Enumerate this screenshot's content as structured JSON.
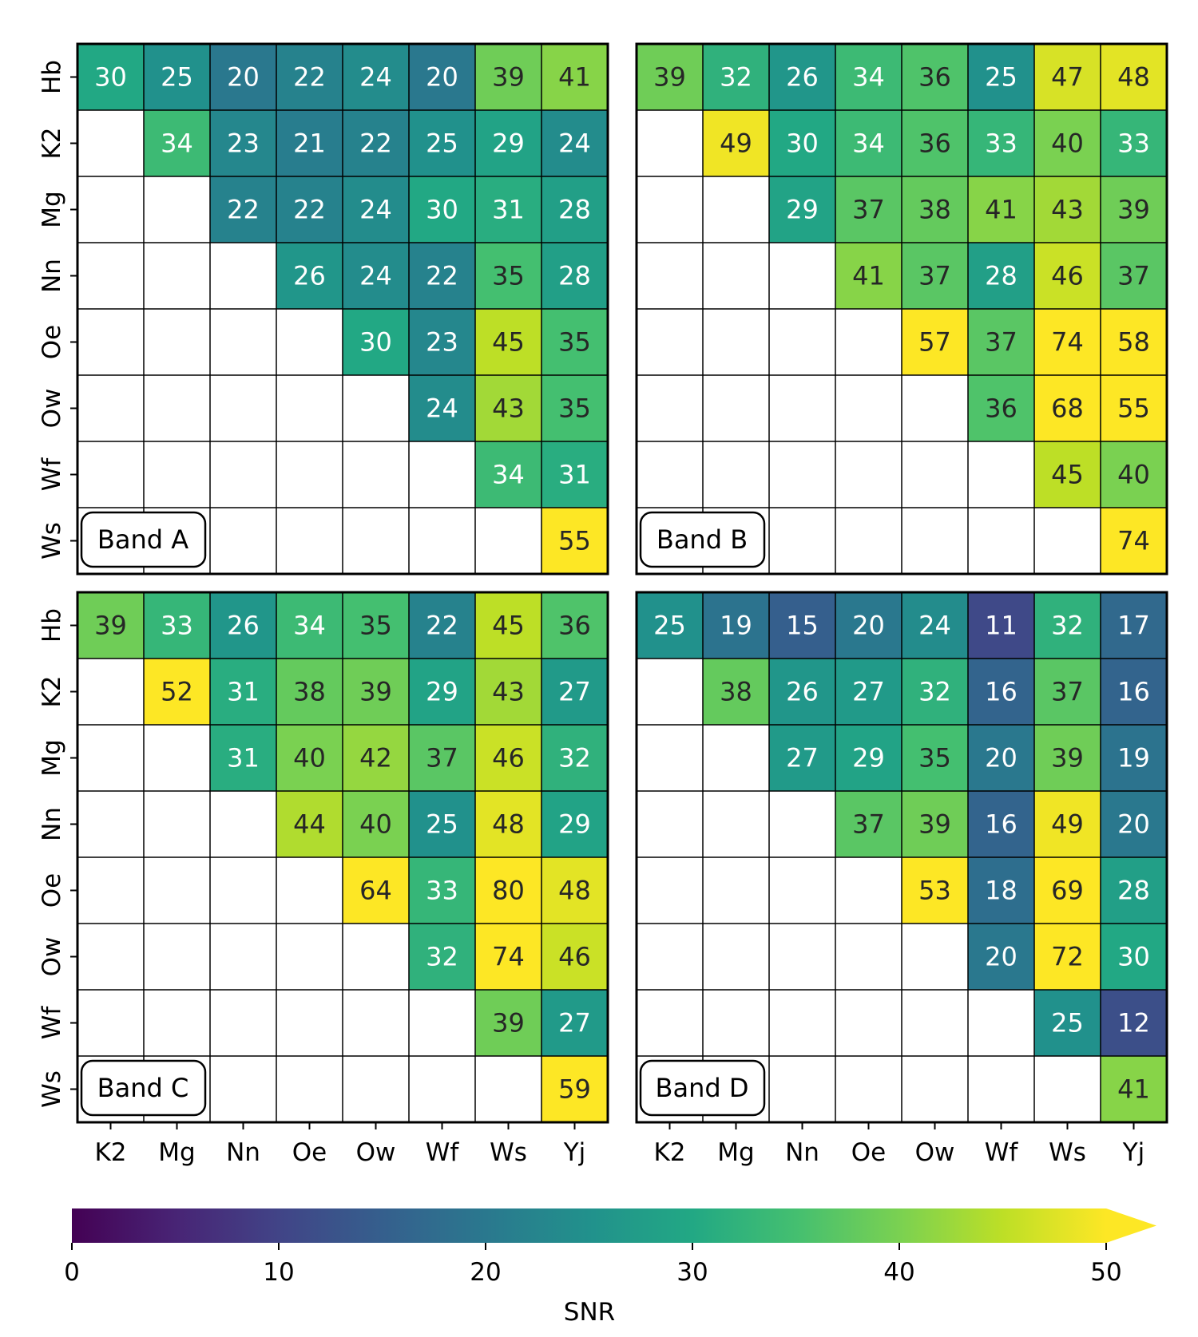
{
  "chart_data": {
    "type": "heatmap",
    "row_labels": [
      "Hb",
      "K2",
      "Mg",
      "Nn",
      "Oe",
      "Ow",
      "Wf",
      "Ws"
    ],
    "col_labels": [
      "K2",
      "Mg",
      "Nn",
      "Oe",
      "Ow",
      "Wf",
      "Ws",
      "Yj"
    ],
    "panels": [
      {
        "label": "Band A",
        "values": [
          [
            30,
            25,
            20,
            22,
            24,
            20,
            39,
            41
          ],
          [
            null,
            34,
            23,
            21,
            22,
            25,
            29,
            24
          ],
          [
            null,
            null,
            22,
            22,
            24,
            30,
            31,
            28
          ],
          [
            null,
            null,
            null,
            26,
            24,
            22,
            35,
            28
          ],
          [
            null,
            null,
            null,
            null,
            30,
            23,
            45,
            35
          ],
          [
            null,
            null,
            null,
            null,
            null,
            24,
            43,
            35
          ],
          [
            null,
            null,
            null,
            null,
            null,
            null,
            34,
            31
          ],
          [
            null,
            null,
            null,
            null,
            null,
            null,
            null,
            55
          ]
        ]
      },
      {
        "label": "Band B",
        "values": [
          [
            39,
            32,
            26,
            34,
            36,
            25,
            47,
            48
          ],
          [
            null,
            49,
            30,
            34,
            36,
            33,
            40,
            33
          ],
          [
            null,
            null,
            29,
            37,
            38,
            41,
            43,
            39
          ],
          [
            null,
            null,
            null,
            41,
            37,
            28,
            46,
            37
          ],
          [
            null,
            null,
            null,
            null,
            57,
            37,
            74,
            58
          ],
          [
            null,
            null,
            null,
            null,
            null,
            36,
            68,
            55
          ],
          [
            null,
            null,
            null,
            null,
            null,
            null,
            45,
            40
          ],
          [
            null,
            null,
            null,
            null,
            null,
            null,
            null,
            74
          ]
        ]
      },
      {
        "label": "Band C",
        "values": [
          [
            39,
            33,
            26,
            34,
            35,
            22,
            45,
            36
          ],
          [
            null,
            52,
            31,
            38,
            39,
            29,
            43,
            27
          ],
          [
            null,
            null,
            31,
            40,
            42,
            37,
            46,
            32
          ],
          [
            null,
            null,
            null,
            44,
            40,
            25,
            48,
            29
          ],
          [
            null,
            null,
            null,
            null,
            64,
            33,
            80,
            48
          ],
          [
            null,
            null,
            null,
            null,
            null,
            32,
            74,
            46
          ],
          [
            null,
            null,
            null,
            null,
            null,
            null,
            39,
            27
          ],
          [
            null,
            null,
            null,
            null,
            null,
            null,
            null,
            59
          ]
        ]
      },
      {
        "label": "Band D",
        "values": [
          [
            25,
            19,
            15,
            20,
            24,
            11,
            32,
            17
          ],
          [
            null,
            38,
            26,
            27,
            32,
            16,
            37,
            16
          ],
          [
            null,
            null,
            27,
            29,
            35,
            20,
            39,
            19
          ],
          [
            null,
            null,
            null,
            37,
            39,
            16,
            49,
            20
          ],
          [
            null,
            null,
            null,
            null,
            53,
            18,
            69,
            28
          ],
          [
            null,
            null,
            null,
            null,
            null,
            20,
            72,
            30
          ],
          [
            null,
            null,
            null,
            null,
            null,
            null,
            25,
            12
          ],
          [
            null,
            null,
            null,
            null,
            null,
            null,
            null,
            41
          ]
        ]
      }
    ],
    "colorbar": {
      "label": "SNR",
      "min": 0,
      "max": 50,
      "ticks": [
        0,
        10,
        20,
        30,
        40,
        50
      ],
      "colormap": "viridis",
      "extend": "max"
    }
  }
}
